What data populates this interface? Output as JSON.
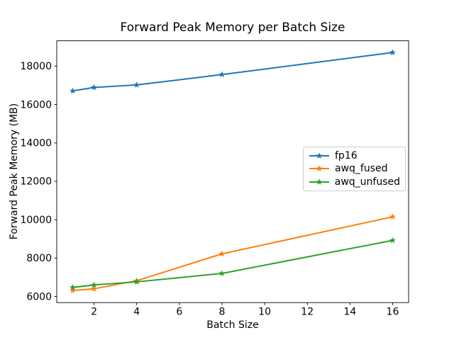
{
  "figure": {
    "background": "#ffffff",
    "text_color": "#000000",
    "axis_color": "#000000"
  },
  "chart_data": {
    "type": "line",
    "title": "Forward Peak Memory per Batch Size",
    "xlabel": "Batch Size",
    "ylabel": "Forward Peak Memory (MB)",
    "x": [
      1,
      2,
      4,
      8,
      16
    ],
    "series": [
      {
        "name": "fp16",
        "color": "#1f77b4",
        "marker": "star",
        "values": [
          16710,
          16890,
          17020,
          17560,
          18710
        ]
      },
      {
        "name": "awq_fused",
        "color": "#ff7f0e",
        "marker": "star",
        "values": [
          6310,
          6400,
          6820,
          8220,
          10150
        ]
      },
      {
        "name": "awq_unfused",
        "color": "#2ca02c",
        "marker": "star",
        "values": [
          6470,
          6600,
          6760,
          7200,
          8920
        ]
      }
    ],
    "xlim": [
      0.25,
      16.75
    ],
    "ylim": [
      5680,
      19320
    ],
    "xticks": [
      2,
      4,
      6,
      8,
      10,
      12,
      14,
      16
    ],
    "yticks": [
      6000,
      8000,
      10000,
      12000,
      14000,
      16000,
      18000
    ],
    "grid": false,
    "legend_position": "center-right",
    "legend_entries": [
      "fp16",
      "awq_fused",
      "awq_unfused"
    ]
  }
}
